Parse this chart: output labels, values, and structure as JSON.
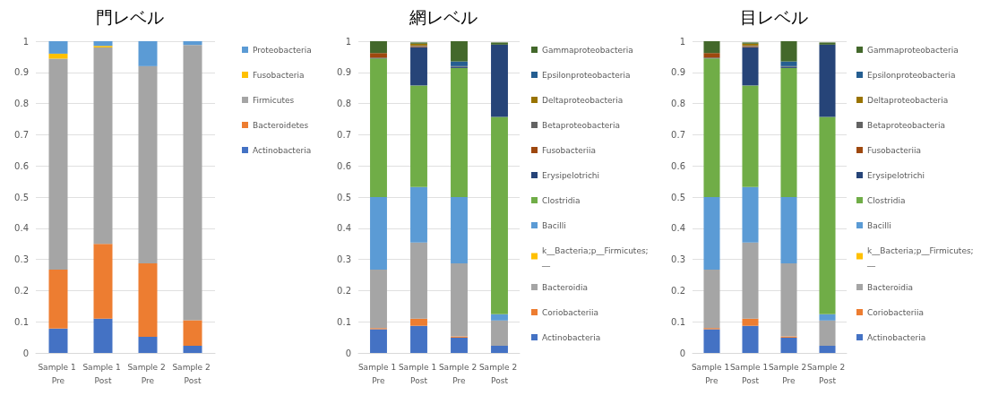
{
  "chart_data": [
    {
      "type": "bar",
      "stacked": true,
      "title": "門レベル",
      "categories": [
        "Sample 1 Pre",
        "Sample 1 Post",
        "Sample 2 Pre",
        "Sample 2 Post"
      ],
      "ylim": [
        0,
        1
      ],
      "yticks": [
        0,
        0.1,
        0.2,
        0.3,
        0.4,
        0.5,
        0.6,
        0.7,
        0.8,
        0.9,
        1
      ],
      "grid": "y",
      "legend": "right",
      "series": [
        {
          "name": "Actinobacteria",
          "color": "#4472c4",
          "values": [
            0.078,
            0.11,
            0.052,
            0.023
          ]
        },
        {
          "name": "Bacteroidetes",
          "color": "#ed7d31",
          "values": [
            0.189,
            0.24,
            0.235,
            0.082
          ]
        },
        {
          "name": "Firmicutes",
          "color": "#a5a5a5",
          "values": [
            0.677,
            0.63,
            0.633,
            0.883
          ]
        },
        {
          "name": "Fusobacteria",
          "color": "#ffc000",
          "values": [
            0.016,
            0.005,
            0,
            0
          ]
        },
        {
          "name": "Proteobacteria",
          "color": "#5b9bd5",
          "values": [
            0.04,
            0.015,
            0.08,
            0.012
          ]
        }
      ]
    },
    {
      "type": "bar",
      "stacked": true,
      "title": "網レベル",
      "categories": [
        "Sample 1 Pre",
        "Sample 1 Post",
        "Sample 2 Pre",
        "Sample 2 Post"
      ],
      "ylim": [
        0,
        1
      ],
      "yticks": [
        0,
        0.1,
        0.2,
        0.3,
        0.4,
        0.5,
        0.6,
        0.7,
        0.8,
        0.9,
        1
      ],
      "grid": "y",
      "legend": "right",
      "series": [
        {
          "name": "Actinobacteria",
          "color": "#4472c4",
          "values": [
            0.076,
            0.087,
            0.049,
            0.023
          ]
        },
        {
          "name": "Coriobacteriia",
          "color": "#ed7d31",
          "values": [
            0.004,
            0.023,
            0.004,
            null
          ]
        },
        {
          "name": "Bacteroidia",
          "color": "#a5a5a5",
          "values": [
            0.187,
            0.244,
            0.234,
            0.081
          ]
        },
        {
          "name": "k__Bacteria;p__Firmicutes;__",
          "color": "#ffc000",
          "values": [
            0,
            0,
            0,
            0
          ]
        },
        {
          "name": "Bacilli",
          "color": "#5b9bd5",
          "values": [
            0.233,
            0.178,
            0.213,
            0.02
          ]
        },
        {
          "name": "Clostridia",
          "color": "#70ad47",
          "values": [
            0.445,
            0.326,
            0.414,
            0.633
          ]
        },
        {
          "name": "Erysipelotrichi",
          "color": "#264478",
          "values": [
            0.002,
            0.123,
            0.004,
            0.232
          ]
        },
        {
          "name": "Fusobacteriia",
          "color": "#9e480e",
          "values": [
            0.015,
            0.003,
            0,
            0
          ]
        },
        {
          "name": "Betaproteobacteria",
          "color": "#636363",
          "values": [
            0,
            0.002,
            0.002,
            0
          ]
        },
        {
          "name": "Deltaproteobacteria",
          "color": "#997300",
          "values": [
            0,
            0.006,
            0,
            0
          ]
        },
        {
          "name": "Epsilonproteobacteria",
          "color": "#255e91",
          "values": [
            0,
            0,
            0.015,
            0
          ]
        },
        {
          "name": "Gammaproteobacteria",
          "color": "#43682b",
          "values": [
            0.038,
            0.004,
            0.065,
            0.007
          ]
        }
      ]
    },
    {
      "type": "bar",
      "stacked": true,
      "title": "目レベル",
      "categories": [
        "Sample 1 Pre",
        "Sample 1 Post",
        "Sample 2 Pre",
        "Sample 2 Post"
      ],
      "ylim": [
        0,
        1
      ],
      "yticks": [
        0,
        0.1,
        0.2,
        0.3,
        0.4,
        0.5,
        0.6,
        0.7,
        0.8,
        0.9,
        1
      ],
      "grid": "y",
      "legend": "right",
      "series": [
        {
          "name": "Actinobacteria",
          "color": "#4472c4",
          "values": [
            0.076,
            0.087,
            0.049,
            0.023
          ]
        },
        {
          "name": "Coriobacteriia",
          "color": "#ed7d31",
          "values": [
            0.004,
            0.023,
            0.004,
            null
          ]
        },
        {
          "name": "Bacteroidia",
          "color": "#a5a5a5",
          "values": [
            0.187,
            0.244,
            0.234,
            0.081
          ]
        },
        {
          "name": "k__Bacteria;p__Firmicutes;__",
          "color": "#ffc000",
          "values": [
            0,
            0,
            0,
            0
          ]
        },
        {
          "name": "Bacilli",
          "color": "#5b9bd5",
          "values": [
            0.233,
            0.178,
            0.213,
            0.02
          ]
        },
        {
          "name": "Clostridia",
          "color": "#70ad47",
          "values": [
            0.445,
            0.326,
            0.414,
            0.633
          ]
        },
        {
          "name": "Erysipelotrichi",
          "color": "#264478",
          "values": [
            0.002,
            0.123,
            0.004,
            0.232
          ]
        },
        {
          "name": "Fusobacteriia",
          "color": "#9e480e",
          "values": [
            0.015,
            0.003,
            0,
            0
          ]
        },
        {
          "name": "Betaproteobacteria",
          "color": "#636363",
          "values": [
            0,
            0.002,
            0.002,
            0
          ]
        },
        {
          "name": "Deltaproteobacteria",
          "color": "#997300",
          "values": [
            0,
            0.006,
            0,
            0
          ]
        },
        {
          "name": "Epsilonproteobacteria",
          "color": "#255e91",
          "values": [
            0,
            0,
            0.015,
            0
          ]
        },
        {
          "name": "Gammaproteobacteria",
          "color": "#43682b",
          "values": [
            0.038,
            0.004,
            0.065,
            0.007
          ]
        }
      ]
    }
  ]
}
